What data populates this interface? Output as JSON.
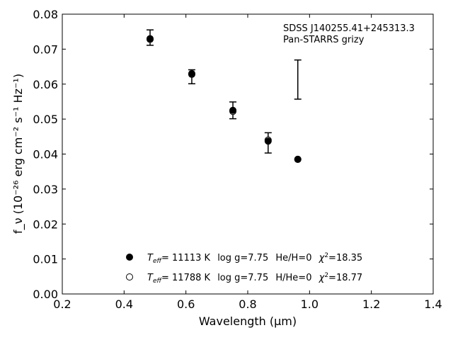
{
  "chart_data": {
    "type": "scatter",
    "xlabel": "Wavelength (μm)",
    "ylabel": "f_ν (10⁻²⁶ erg cm⁻² s⁻¹ Hz⁻¹)",
    "xlim": [
      0.2,
      1.4
    ],
    "ylim": [
      0.0,
      0.08
    ],
    "x_ticks": [
      "0.2",
      "0.4",
      "0.6",
      "0.8",
      "1.0",
      "1.2",
      "1.4"
    ],
    "y_ticks": [
      "0.00",
      "0.01",
      "0.02",
      "0.03",
      "0.04",
      "0.05",
      "0.06",
      "0.07",
      "0.08"
    ],
    "annotation": [
      "SDSS J140255.41+245313.3",
      "Pan-STARRS grizy"
    ],
    "observed": [
      {
        "x": 0.484,
        "y": 0.0733,
        "err": 0.0022
      },
      {
        "x": 0.619,
        "y": 0.0621,
        "err": 0.002
      },
      {
        "x": 0.752,
        "y": 0.0525,
        "err": 0.0024
      },
      {
        "x": 0.866,
        "y": 0.0432,
        "err": 0.0029
      },
      {
        "x": 0.962,
        "y": 0.0613,
        "err": 0.0056
      }
    ],
    "series": [
      {
        "marker": "filled",
        "label_parts": {
          "teff": "= 11113 K",
          "logg": "log g=7.75",
          "comp": "He/H=0",
          "chi": "=18.35"
        },
        "points": [
          {
            "x": 0.484,
            "y": 0.073
          },
          {
            "x": 0.619,
            "y": 0.063
          },
          {
            "x": 0.752,
            "y": 0.0525
          },
          {
            "x": 0.866,
            "y": 0.0437
          },
          {
            "x": 0.962,
            "y": 0.0385
          }
        ]
      },
      {
        "marker": "open",
        "label_parts": {
          "teff": "= 11788 K",
          "logg": "log g=7.75",
          "comp": "H/He=0",
          "chi": "=18.77"
        },
        "points": [
          {
            "x": 0.484,
            "y": 0.0728
          },
          {
            "x": 0.619,
            "y": 0.0628
          },
          {
            "x": 0.752,
            "y": 0.0522
          },
          {
            "x": 0.866,
            "y": 0.044
          },
          {
            "x": 0.962,
            "y": 0.0385
          }
        ]
      }
    ]
  }
}
